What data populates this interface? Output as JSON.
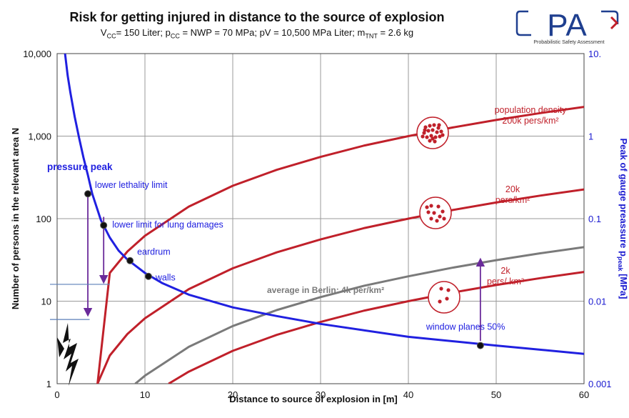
{
  "header": {
    "title": "Risk for getting injured in distance to the source of explosion",
    "subtitle_parts": {
      "vcc_label": "V",
      "vcc_sub": "CC",
      "vcc_value": "= 150 Liter; p",
      "pcc_sub": "CC",
      "pcc_value": " = NWP = 70 MPa; pV = 10,500 MPa Liter; m",
      "mtnt_sub": "TNT",
      "mtnt_value": " = 2.6 kg"
    }
  },
  "logo": {
    "text": "PA",
    "caption": "Probabilistic Safety Assessment",
    "colors": {
      "frame": "#1f3f8f",
      "accent": "#c0202a"
    }
  },
  "chart_data": {
    "type": "line",
    "title": "Risk for getting injured in distance to the source of explosion",
    "xlabel": "Distance to source of explosion   in [m]",
    "ylabel": "Number of persons in the relevant area  N",
    "y2label": "Peak of gauge preassure p",
    "y2label_sub": "peak",
    "y2label_unit": " [MPa]",
    "xlim": [
      0,
      60
    ],
    "ylim": [
      1,
      10000
    ],
    "y2lim": [
      0.001,
      10
    ],
    "yscale": "log",
    "y2scale": "log",
    "grid": true,
    "x_ticks": [
      "0",
      "10",
      "20",
      "30",
      "40",
      "50",
      "60"
    ],
    "y_ticks": [
      "1",
      "10",
      "100",
      "1,000",
      "10,000"
    ],
    "y2_ticks": [
      "0.001",
      "0.01",
      "0.1",
      "1",
      "10."
    ],
    "series": [
      {
        "name": "population density 200k pers/km²",
        "axis": "left",
        "color": "#c0202a",
        "x": [
          4.6,
          6,
          8,
          10,
          15,
          20,
          25,
          30,
          35,
          40,
          45,
          50,
          55,
          60
        ],
        "y": [
          1,
          22,
          40,
          62,
          140,
          250,
          390,
          560,
          770,
          1000,
          1270,
          1570,
          1900,
          2260
        ]
      },
      {
        "name": "20k pers/km²",
        "axis": "left",
        "color": "#c0202a",
        "x": [
          4.6,
          6,
          8,
          10,
          15,
          20,
          25,
          30,
          35,
          40,
          45,
          50,
          55,
          60
        ],
        "y": [
          1,
          2.2,
          4,
          6.2,
          14,
          25,
          39,
          56,
          77,
          100,
          127,
          157,
          190,
          226
        ]
      },
      {
        "name": "average in Berlin: 4k per/km²",
        "axis": "left",
        "color": "#7a7a7a",
        "x": [
          8.9,
          10,
          15,
          20,
          25,
          30,
          35,
          40,
          45,
          50,
          55,
          60
        ],
        "y": [
          1,
          1.25,
          2.8,
          5,
          7.8,
          11.2,
          15.4,
          20,
          25.4,
          31.4,
          38,
          45.2
        ]
      },
      {
        "name": "2k pers/ km²",
        "axis": "left",
        "color": "#c0202a",
        "x": [
          12.7,
          15,
          20,
          25,
          30,
          35,
          40,
          45,
          50,
          55,
          60
        ],
        "y": [
          1,
          1.4,
          2.5,
          3.9,
          5.6,
          7.7,
          10,
          12.7,
          15.7,
          19,
          22.6
        ]
      },
      {
        "name": "pressure peak",
        "axis": "right",
        "color": "#2020e0",
        "x": [
          0.9,
          1.2,
          1.5,
          2,
          2.5,
          3,
          3.5,
          4,
          5,
          6,
          7,
          8,
          10,
          12,
          15,
          20,
          25,
          30,
          40,
          50,
          60
        ],
        "y": [
          10,
          5.4,
          3.4,
          1.72,
          0.95,
          0.55,
          0.34,
          0.2,
          0.095,
          0.059,
          0.041,
          0.032,
          0.022,
          0.0165,
          0.012,
          0.0084,
          0.0066,
          0.0053,
          0.0037,
          0.0029,
          0.0023
        ]
      }
    ],
    "points": [
      {
        "label": "lower lethality limit",
        "x": 3.5,
        "y": 0.2
      },
      {
        "label": "lower limit for lung damages",
        "x": 5.3,
        "y": 0.083
      },
      {
        "label": "eardrum",
        "x": 8.3,
        "y": 0.031
      },
      {
        "label": "walls",
        "x": 10.4,
        "y": 0.02
      },
      {
        "label": "window planes 50%",
        "x": 48.2,
        "y": 0.0029
      }
    ],
    "annotations": {
      "pressure_peak": "pressure peak",
      "pop_200k_line1": "population density",
      "pop_200k_line2": "200k pers/km²",
      "pop_20k_line1": "20k",
      "pop_20k_line2": "pers/km²",
      "pop_2k_line1": "2k",
      "pop_2k_line2": "pers/ km²",
      "berlin": "average in Berlin: 4k per/km²"
    },
    "colors": {
      "red": "#c0202a",
      "blue": "#2020e0",
      "gray": "#7a7a7a",
      "purple": "#6a2a9a",
      "steel": "#5b7fb8",
      "grid": "#9a9a9a",
      "right_axis_text": "#1a1ad0"
    }
  }
}
